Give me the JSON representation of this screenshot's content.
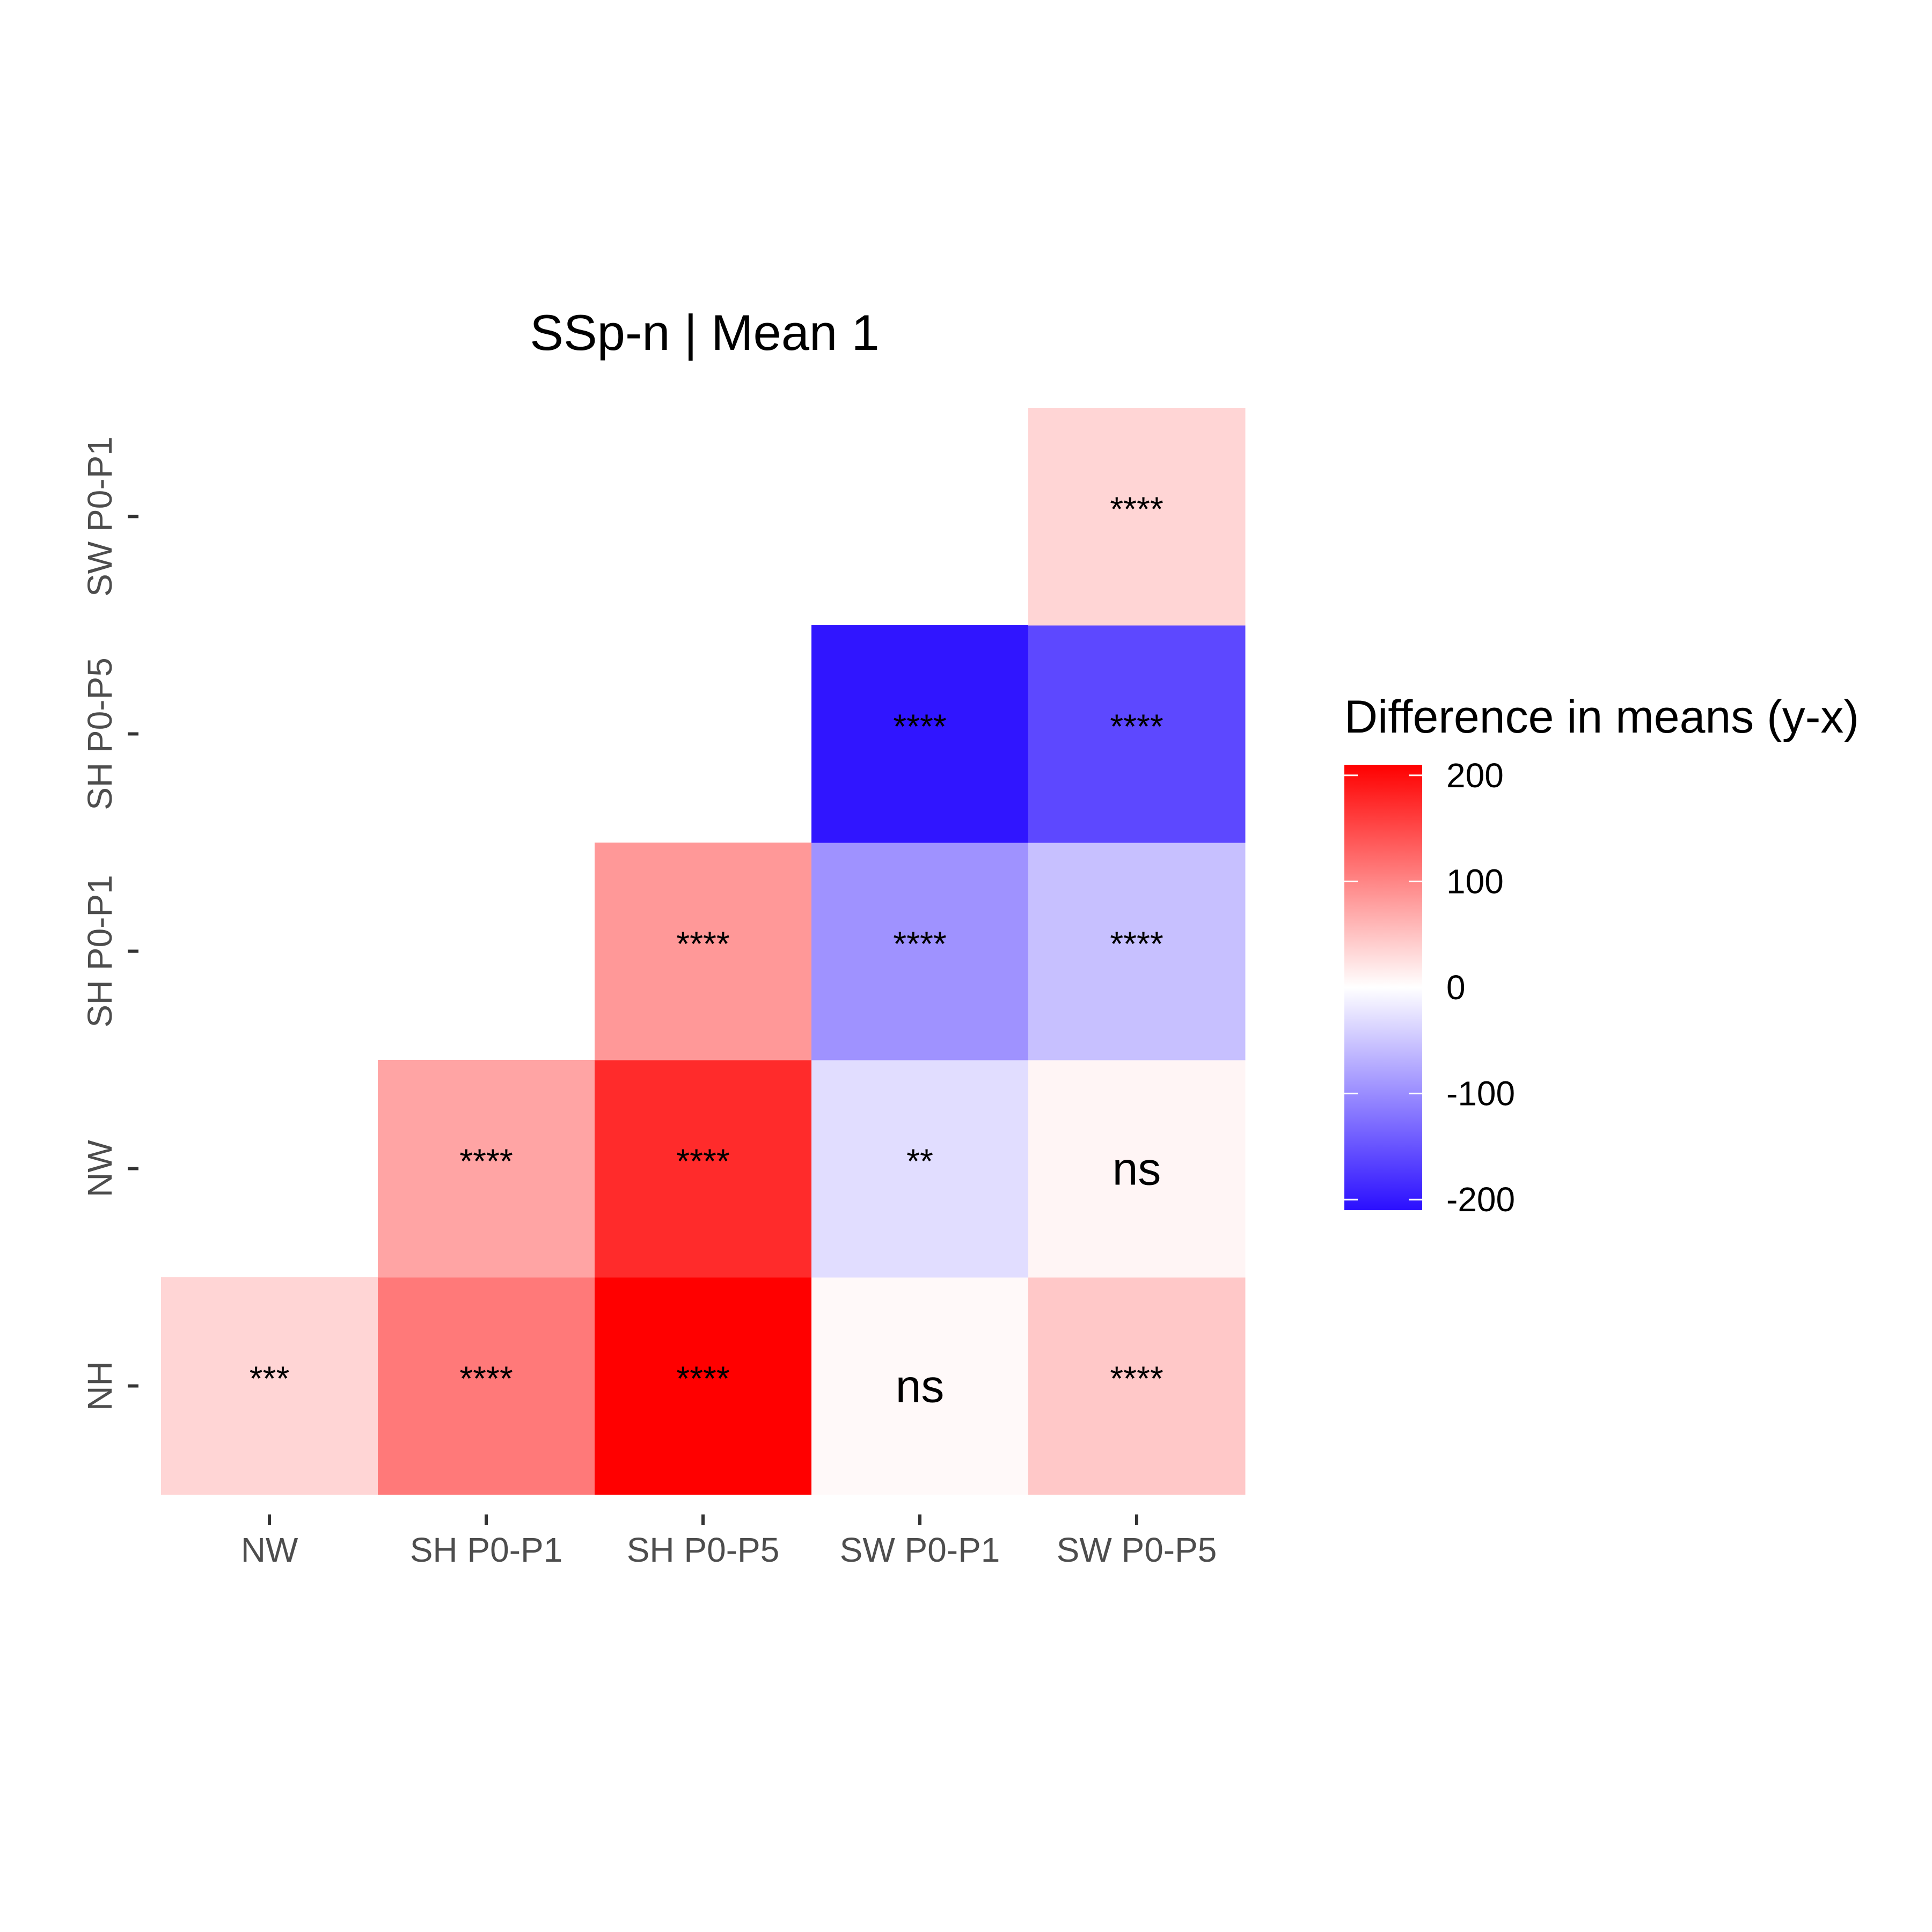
{
  "chart_data": {
    "type": "heatmap",
    "title": "SSp-n | Mean 1",
    "x_categories": [
      "NW",
      "SH P0-P1",
      "SH P0-P5",
      "SW P0-P1",
      "SW P0-P5"
    ],
    "y_categories": [
      "NH",
      "NW",
      "SH P0-P1",
      "SH P0-P5",
      "SW P0-P1"
    ],
    "cells": [
      {
        "x": "NW",
        "y": "NH",
        "value": 35,
        "label": "***"
      },
      {
        "x": "SH P0-P1",
        "y": "NH",
        "value": 110,
        "label": "****"
      },
      {
        "x": "SH P0-P5",
        "y": "NH",
        "value": 210,
        "label": "****"
      },
      {
        "x": "SW P0-P1",
        "y": "NH",
        "value": 5,
        "label": "ns"
      },
      {
        "x": "SW P0-P5",
        "y": "NH",
        "value": 45,
        "label": "****"
      },
      {
        "x": "SH P0-P1",
        "y": "NW",
        "value": 75,
        "label": "****"
      },
      {
        "x": "SH P0-P5",
        "y": "NW",
        "value": 175,
        "label": "****"
      },
      {
        "x": "SW P0-P1",
        "y": "NW",
        "value": -30,
        "label": "**"
      },
      {
        "x": "SW P0-P5",
        "y": "NW",
        "value": 8,
        "label": "ns"
      },
      {
        "x": "SH P0-P5",
        "y": "SH P0-P1",
        "value": 85,
        "label": "****"
      },
      {
        "x": "SW P0-P1",
        "y": "SH P0-P1",
        "value": -95,
        "label": "****"
      },
      {
        "x": "SW P0-P5",
        "y": "SH P0-P1",
        "value": -55,
        "label": "****"
      },
      {
        "x": "SW P0-P1",
        "y": "SH P0-P5",
        "value": -205,
        "label": "****"
      },
      {
        "x": "SW P0-P5",
        "y": "SH P0-P5",
        "value": -160,
        "label": "****"
      },
      {
        "x": "SW P0-P5",
        "y": "SW P0-P1",
        "value": 35,
        "label": "****"
      }
    ],
    "legend": {
      "title": "Difference in means (y-x)",
      "ticks": [
        200,
        100,
        0,
        -100,
        -200
      ],
      "tick_labels": [
        "200",
        "100",
        "0",
        "-100",
        "-200"
      ],
      "range": [
        -210,
        210
      ],
      "placement": "right"
    },
    "colors": {
      "low": "#2b0fff",
      "mid": "#ffffff",
      "high": "#ff0000"
    },
    "grid": false
  }
}
